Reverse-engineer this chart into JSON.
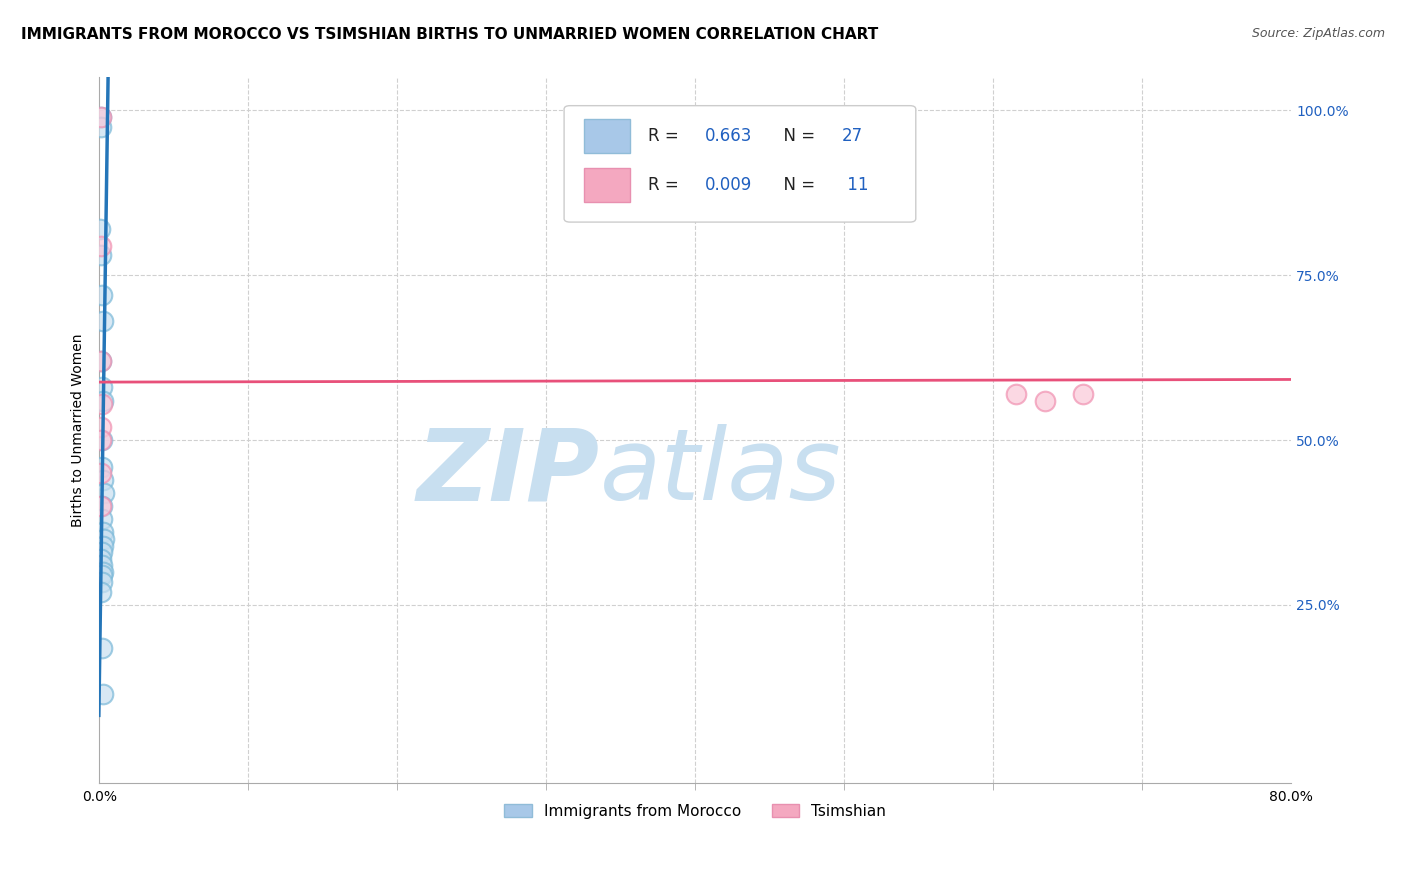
{
  "title": "IMMIGRANTS FROM MOROCCO VS TSIMSHIAN BIRTHS TO UNMARRIED WOMEN CORRELATION CHART",
  "source": "Source: ZipAtlas.com",
  "ylabel_left": "Births to Unmarried Women",
  "legend_entries": [
    {
      "label": "Immigrants from Morocco",
      "color": "#a8c8e8"
    },
    {
      "label": "Tsimshian",
      "color": "#f4a8c0"
    }
  ],
  "blue_scatter_x": [
    0.001,
    0.001,
    0.0008,
    0.0015,
    0.002,
    0.0025,
    0.0015,
    0.002,
    0.0028,
    0.0022,
    0.002,
    0.0025,
    0.003,
    0.002,
    0.002,
    0.0025,
    0.003,
    0.0025,
    0.002,
    0.0015,
    0.002,
    0.0025,
    0.002,
    0.002,
    0.0015,
    0.002,
    0.0025
  ],
  "blue_scatter_y": [
    0.99,
    0.975,
    0.82,
    0.78,
    0.72,
    0.68,
    0.62,
    0.58,
    0.56,
    0.5,
    0.46,
    0.44,
    0.42,
    0.4,
    0.38,
    0.36,
    0.35,
    0.34,
    0.33,
    0.32,
    0.31,
    0.3,
    0.295,
    0.285,
    0.27,
    0.185,
    0.115
  ],
  "pink_scatter_x": [
    0.001,
    0.0012,
    0.0015,
    0.0016,
    0.0012,
    0.0015,
    0.0012,
    0.0014,
    0.615,
    0.635,
    0.66
  ],
  "pink_scatter_y": [
    0.99,
    0.795,
    0.62,
    0.555,
    0.52,
    0.5,
    0.45,
    0.4,
    0.57,
    0.56,
    0.57
  ],
  "blue_line_x": [
    -0.0002,
    0.0062
  ],
  "blue_line_y": [
    0.08,
    1.08
  ],
  "pink_line_x": [
    0.0,
    0.8
  ],
  "pink_line_y": [
    0.588,
    0.592
  ],
  "xlim": [
    0.0,
    0.8
  ],
  "ylim": [
    -0.02,
    1.05
  ],
  "yticks_right": [
    1.0,
    0.75,
    0.5,
    0.25
  ],
  "grid_color": "#d0d0d0",
  "blue_scatter_face": "#c8dff0",
  "blue_scatter_edge": "#7ab8d8",
  "pink_scatter_face": "#fac8d8",
  "pink_scatter_edge": "#f090b0",
  "trend_blue_color": "#2475b8",
  "trend_pink_color": "#e8507a",
  "watermark_color": "#c8dff0",
  "title_fontsize": 11,
  "source_fontsize": 9,
  "legend_R1": "0.663",
  "legend_N1": "27",
  "legend_R2": "0.009",
  "legend_N2": "11"
}
